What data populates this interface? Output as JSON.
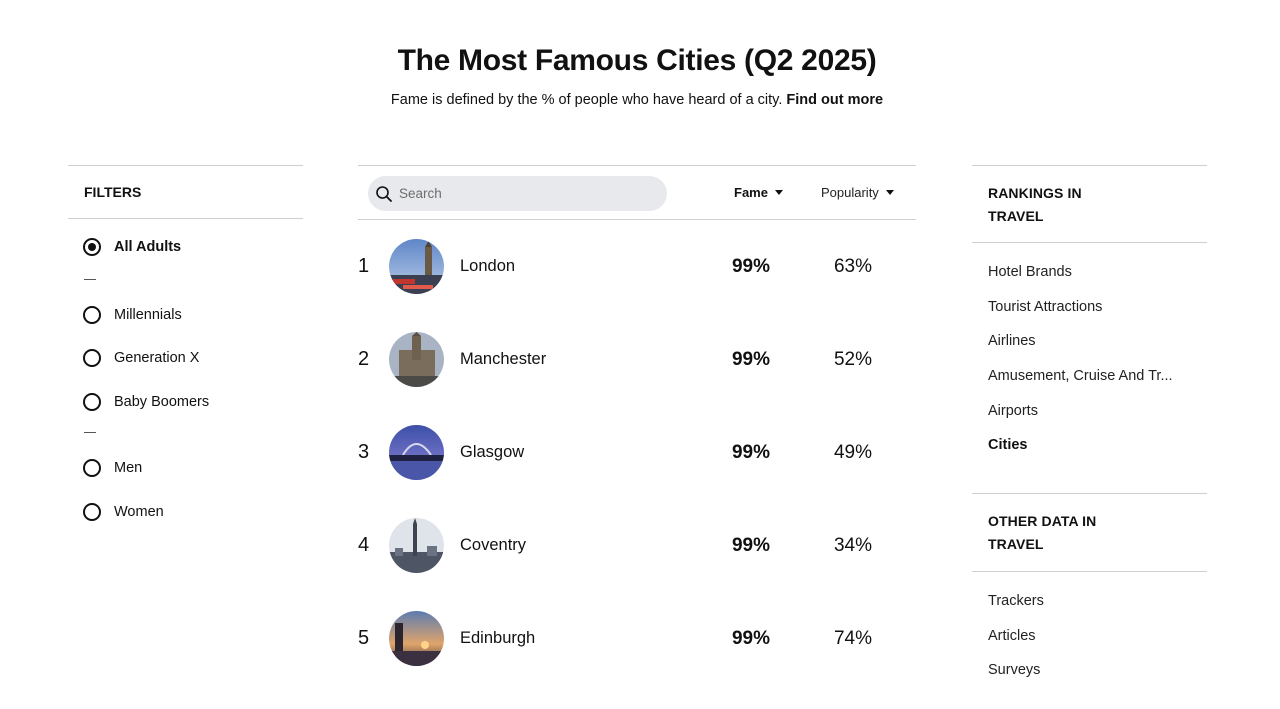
{
  "header": {
    "title": "The Most Famous Cities (Q2 2025)",
    "subtitle": "Fame is defined by the % of people who have heard of a city.",
    "subtitle_link": "Find out more"
  },
  "filters": {
    "heading": "FILTERS",
    "options": [
      {
        "label": "All Adults",
        "selected": true
      },
      {
        "label": "Millennials",
        "selected": false
      },
      {
        "label": "Generation X",
        "selected": false
      },
      {
        "label": "Baby Boomers",
        "selected": false
      },
      {
        "label": "Men",
        "selected": false
      },
      {
        "label": "Women",
        "selected": false
      }
    ]
  },
  "table": {
    "search_placeholder": "Search",
    "col_fame": "Fame",
    "col_popularity": "Popularity",
    "rows": [
      {
        "rank": "1",
        "name": "London",
        "fame": "99%",
        "popularity": "63%"
      },
      {
        "rank": "2",
        "name": "Manchester",
        "fame": "99%",
        "popularity": "52%"
      },
      {
        "rank": "3",
        "name": "Glasgow",
        "fame": "99%",
        "popularity": "49%"
      },
      {
        "rank": "4",
        "name": "Coventry",
        "fame": "99%",
        "popularity": "34%"
      },
      {
        "rank": "5",
        "name": "Edinburgh",
        "fame": "99%",
        "popularity": "74%"
      }
    ]
  },
  "rankings": {
    "heading_line1": "RANKINGS IN",
    "heading_line2": "TRAVEL",
    "items": [
      {
        "label": "Hotel Brands",
        "active": false
      },
      {
        "label": "Tourist Attractions",
        "active": false
      },
      {
        "label": "Airlines",
        "active": false
      },
      {
        "label": "Amusement, Cruise And Tr...",
        "active": false
      },
      {
        "label": "Airports",
        "active": false
      },
      {
        "label": "Cities",
        "active": true
      }
    ]
  },
  "other_data": {
    "heading_line1": "OTHER DATA IN",
    "heading_line2": "TRAVEL",
    "items": [
      {
        "label": "Trackers"
      },
      {
        "label": "Articles"
      },
      {
        "label": "Surveys"
      }
    ]
  },
  "colors": {
    "text": "#111111",
    "divider": "#cfcfcf",
    "search_bg": "#e8e9ec"
  }
}
